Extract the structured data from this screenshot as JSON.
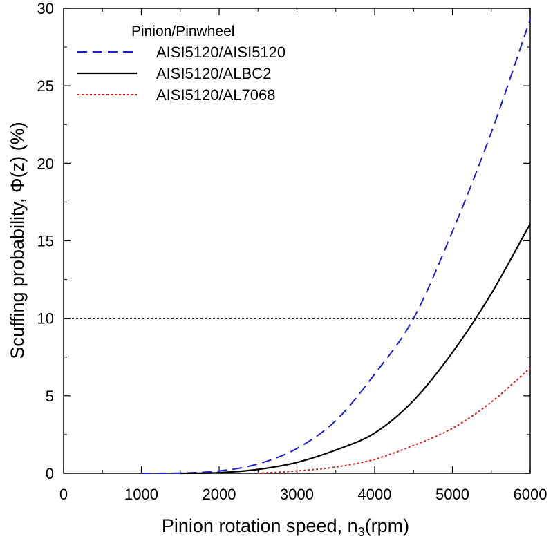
{
  "chart_data": {
    "type": "line",
    "xlabel": "Pinion rotation speed, n",
    "xlabel_sub": "3",
    "xlabel_unit": "(rpm)",
    "ylabel": "Scuffing probability, Φ(z) (%)",
    "xlim": [
      0,
      6000
    ],
    "ylim": [
      0,
      30
    ],
    "x_ticks": [
      0,
      1000,
      2000,
      3000,
      4000,
      5000,
      6000
    ],
    "y_ticks": [
      0,
      5,
      10,
      15,
      20,
      25,
      30
    ],
    "grid": false,
    "reference_line": {
      "y": 10,
      "style": "dashed",
      "color": "#000000"
    },
    "legend": {
      "title": "Pinion/Pinwheel",
      "placement": "top-left"
    },
    "series": [
      {
        "name": "AISI5120/AISI5120",
        "color": "#1f1fcc",
        "style": "dashed",
        "x": [
          1000,
          1500,
          2000,
          2500,
          3000,
          3500,
          4000,
          4500,
          5000,
          5500,
          6000
        ],
        "y": [
          0.0,
          0.02,
          0.15,
          0.6,
          1.6,
          3.4,
          6.4,
          10.0,
          15.6,
          22.0,
          29.3
        ]
      },
      {
        "name": "AISI5120/ALBC2",
        "color": "#000000",
        "style": "solid",
        "x": [
          1500,
          2000,
          2500,
          3000,
          3500,
          4000,
          4500,
          5000,
          5500,
          6000
        ],
        "y": [
          0.0,
          0.04,
          0.25,
          0.7,
          1.5,
          2.6,
          4.7,
          7.8,
          11.6,
          16.1
        ]
      },
      {
        "name": "AISI5120/AL7068",
        "color": "#e02020",
        "style": "dotted",
        "x": [
          2500,
          3000,
          3500,
          4000,
          4500,
          5000,
          5500,
          6000
        ],
        "y": [
          0.0,
          0.15,
          0.4,
          0.9,
          1.8,
          2.9,
          4.6,
          6.8
        ]
      }
    ]
  }
}
